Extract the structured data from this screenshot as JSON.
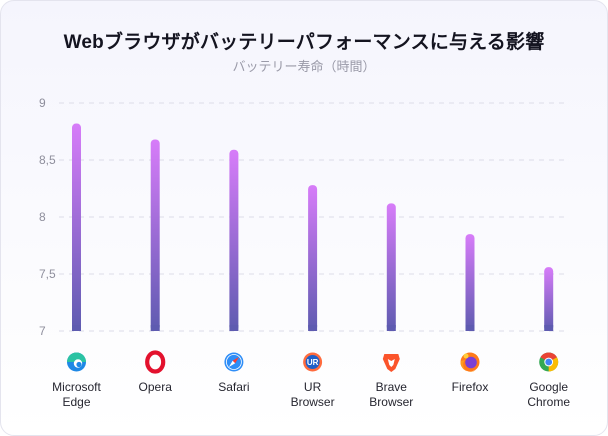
{
  "title": "Webブラウザがバッテリーパフォーマンスに与える影響",
  "subtitle": "バッテリー寿命（時間）",
  "chart_data": {
    "type": "bar",
    "title": "Webブラウザがバッテリーパフォーマンスに与える影響",
    "subtitle": "バッテリー寿命（時間）",
    "categories": [
      [
        "Microsoft",
        "Edge"
      ],
      [
        "Opera"
      ],
      [
        "Safari"
      ],
      [
        "UR",
        "Browser"
      ],
      [
        "Brave",
        "Browser"
      ],
      [
        "Firefox"
      ],
      [
        "Google",
        "Chrome"
      ]
    ],
    "icons": [
      "edge-icon",
      "opera-icon",
      "safari-icon",
      "ur-browser-icon",
      "brave-icon",
      "firefox-icon",
      "chrome-icon"
    ],
    "values": [
      8.82,
      8.68,
      8.59,
      8.28,
      8.12,
      7.85,
      7.56
    ],
    "ylim": [
      7,
      9
    ],
    "yticks": [
      "7",
      "7,5",
      "8",
      "8,5",
      "9"
    ],
    "grid": true,
    "bar_gradient": [
      "#d77cf9",
      "#5e5bb0"
    ]
  }
}
